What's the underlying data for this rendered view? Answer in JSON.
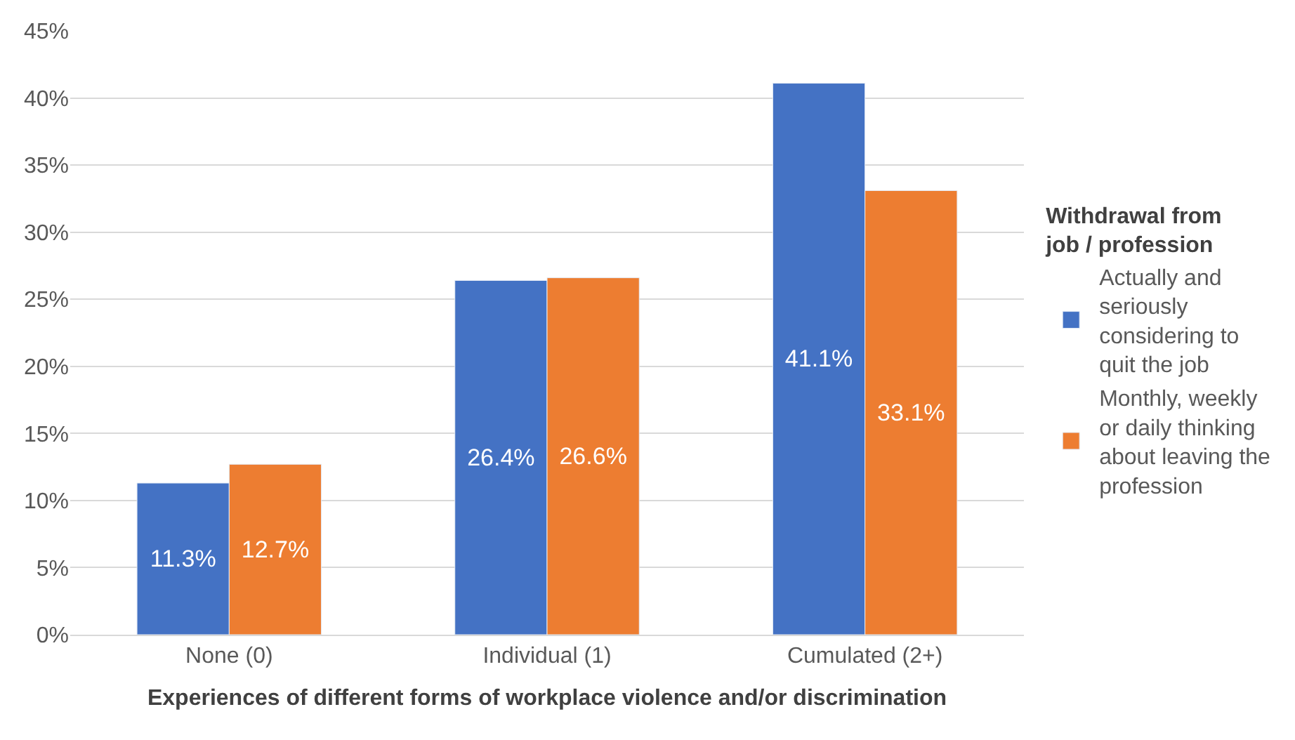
{
  "chart_data": {
    "type": "bar",
    "xlabel": "Experiences of different forms of workplace violence and/or discrimination",
    "legend_title": "Withdrawal from job / profession",
    "categories": [
      "None (0)",
      "Individual (1)",
      "Cumulated (2+)"
    ],
    "series": [
      {
        "name": "Actually and seriously considering to quit the job",
        "color": "#4472c4",
        "values": [
          11.3,
          26.4,
          41.1
        ],
        "value_labels": [
          "11.3%",
          "26.4%",
          "41.1%"
        ]
      },
      {
        "name": "Monthly, weekly or daily thinking about leaving the profession",
        "color": "#ed7d31",
        "values": [
          12.7,
          26.6,
          33.1
        ],
        "value_labels": [
          "12.7%",
          "26.6%",
          "33.1%"
        ]
      }
    ],
    "ylim": [
      0,
      45
    ],
    "yticks": [
      {
        "value": 0,
        "label": "0%"
      },
      {
        "value": 5,
        "label": "5%"
      },
      {
        "value": 10,
        "label": "10%"
      },
      {
        "value": 15,
        "label": "15%"
      },
      {
        "value": 20,
        "label": "20%"
      },
      {
        "value": 25,
        "label": "25%"
      },
      {
        "value": 30,
        "label": "30%"
      },
      {
        "value": 35,
        "label": "35%"
      },
      {
        "value": 40,
        "label": "40%"
      },
      {
        "value": 45,
        "label": "45%"
      }
    ],
    "grid": "y",
    "legend": "right"
  }
}
